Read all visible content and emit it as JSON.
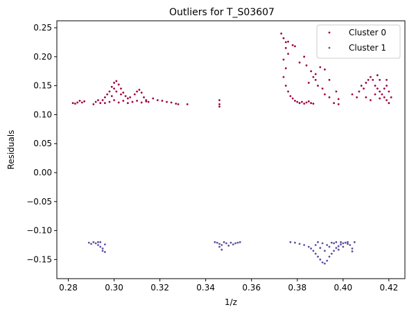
{
  "chart_data": {
    "type": "scatter",
    "title": "Outliers for T_S03607",
    "xlabel": "1/z",
    "ylabel": "Residuals",
    "xlim": [
      0.275,
      0.427
    ],
    "ylim": [
      -0.183,
      0.262
    ],
    "x_ticks": [
      0.28,
      0.3,
      0.32,
      0.34,
      0.36,
      0.38,
      0.4,
      0.42
    ],
    "y_ticks": [
      -0.15,
      -0.1,
      -0.05,
      0.0,
      0.05,
      0.1,
      0.15,
      0.2,
      0.25
    ],
    "x_tick_labels": [
      "0.28",
      "0.30",
      "0.32",
      "0.34",
      "0.36",
      "0.38",
      "0.40",
      "0.42"
    ],
    "y_tick_labels": [
      "−0.15",
      "−0.10",
      "−0.05",
      "0.00",
      "0.05",
      "0.10",
      "0.15",
      "0.20",
      "0.25"
    ],
    "grid": false,
    "legend_position": "top-right",
    "series": [
      {
        "name": "Cluster 0",
        "color": "#9e0142",
        "points": [
          [
            0.282,
            0.12
          ],
          [
            0.283,
            0.119
          ],
          [
            0.284,
            0.121
          ],
          [
            0.285,
            0.124
          ],
          [
            0.286,
            0.121
          ],
          [
            0.287,
            0.123
          ],
          [
            0.291,
            0.118
          ],
          [
            0.292,
            0.122
          ],
          [
            0.293,
            0.125
          ],
          [
            0.294,
            0.12
          ],
          [
            0.295,
            0.125
          ],
          [
            0.296,
            0.13
          ],
          [
            0.297,
            0.135
          ],
          [
            0.298,
            0.14
          ],
          [
            0.299,
            0.148
          ],
          [
            0.3,
            0.155
          ],
          [
            0.301,
            0.158
          ],
          [
            0.302,
            0.152
          ],
          [
            0.303,
            0.145
          ],
          [
            0.304,
            0.138
          ],
          [
            0.305,
            0.132
          ],
          [
            0.306,
            0.128
          ],
          [
            0.296,
            0.12
          ],
          [
            0.298,
            0.122
          ],
          [
            0.3,
            0.125
          ],
          [
            0.302,
            0.121
          ],
          [
            0.304,
            0.124
          ],
          [
            0.306,
            0.12
          ],
          [
            0.299,
            0.132
          ],
          [
            0.301,
            0.14
          ],
          [
            0.303,
            0.135
          ],
          [
            0.3,
            0.145
          ],
          [
            0.307,
            0.13
          ],
          [
            0.309,
            0.135
          ],
          [
            0.31,
            0.14
          ],
          [
            0.311,
            0.143
          ],
          [
            0.312,
            0.138
          ],
          [
            0.313,
            0.13
          ],
          [
            0.314,
            0.125
          ],
          [
            0.308,
            0.122
          ],
          [
            0.31,
            0.124
          ],
          [
            0.312,
            0.121
          ],
          [
            0.314,
            0.123
          ],
          [
            0.315,
            0.122
          ],
          [
            0.317,
            0.128
          ],
          [
            0.319,
            0.125
          ],
          [
            0.321,
            0.124
          ],
          [
            0.323,
            0.122
          ],
          [
            0.325,
            0.121
          ],
          [
            0.327,
            0.119
          ],
          [
            0.328,
            0.118
          ],
          [
            0.332,
            0.118
          ],
          [
            0.346,
            0.125
          ],
          [
            0.346,
            0.118
          ],
          [
            0.346,
            0.114
          ],
          [
            0.373,
            0.24
          ],
          [
            0.374,
            0.232
          ],
          [
            0.375,
            0.225
          ],
          [
            0.375,
            0.215
          ],
          [
            0.376,
            0.226
          ],
          [
            0.376,
            0.205
          ],
          [
            0.374,
            0.195
          ],
          [
            0.375,
            0.18
          ],
          [
            0.374,
            0.165
          ],
          [
            0.375,
            0.15
          ],
          [
            0.376,
            0.14
          ],
          [
            0.377,
            0.132
          ],
          [
            0.378,
            0.128
          ],
          [
            0.379,
            0.124
          ],
          [
            0.38,
            0.122
          ],
          [
            0.381,
            0.12
          ],
          [
            0.382,
            0.122
          ],
          [
            0.383,
            0.119
          ],
          [
            0.384,
            0.121
          ],
          [
            0.385,
            0.123
          ],
          [
            0.386,
            0.12
          ],
          [
            0.387,
            0.119
          ],
          [
            0.378,
            0.22
          ],
          [
            0.379,
            0.218
          ],
          [
            0.383,
            0.2
          ],
          [
            0.381,
            0.19
          ],
          [
            0.384,
            0.185
          ],
          [
            0.386,
            0.175
          ],
          [
            0.387,
            0.165
          ],
          [
            0.388,
            0.16
          ],
          [
            0.389,
            0.15
          ],
          [
            0.391,
            0.145
          ],
          [
            0.392,
            0.135
          ],
          [
            0.394,
            0.13
          ],
          [
            0.39,
            0.182
          ],
          [
            0.388,
            0.17
          ],
          [
            0.385,
            0.155
          ],
          [
            0.392,
            0.178
          ],
          [
            0.394,
            0.16
          ],
          [
            0.397,
            0.14
          ],
          [
            0.398,
            0.127
          ],
          [
            0.396,
            0.12
          ],
          [
            0.398,
            0.118
          ],
          [
            0.404,
            0.135
          ],
          [
            0.406,
            0.13
          ],
          [
            0.407,
            0.14
          ],
          [
            0.408,
            0.15
          ],
          [
            0.409,
            0.145
          ],
          [
            0.41,
            0.155
          ],
          [
            0.411,
            0.16
          ],
          [
            0.412,
            0.165
          ],
          [
            0.413,
            0.16
          ],
          [
            0.414,
            0.15
          ],
          [
            0.415,
            0.145
          ],
          [
            0.416,
            0.14
          ],
          [
            0.417,
            0.135
          ],
          [
            0.418,
            0.13
          ],
          [
            0.419,
            0.125
          ],
          [
            0.42,
            0.14
          ],
          [
            0.421,
            0.13
          ],
          [
            0.41,
            0.13
          ],
          [
            0.412,
            0.125
          ],
          [
            0.414,
            0.135
          ],
          [
            0.416,
            0.128
          ],
          [
            0.418,
            0.145
          ],
          [
            0.419,
            0.15
          ],
          [
            0.42,
            0.12
          ],
          [
            0.416,
            0.16
          ],
          [
            0.415,
            0.168
          ],
          [
            0.419,
            0.16
          ]
        ]
      },
      {
        "name": "Cluster 1",
        "color": "#5e4fa2",
        "points": [
          [
            0.289,
            -0.121
          ],
          [
            0.29,
            -0.123
          ],
          [
            0.291,
            -0.12
          ],
          [
            0.292,
            -0.122
          ],
          [
            0.293,
            -0.125
          ],
          [
            0.294,
            -0.128
          ],
          [
            0.294,
            -0.12
          ],
          [
            0.295,
            -0.131
          ],
          [
            0.295,
            -0.135
          ],
          [
            0.296,
            -0.137
          ],
          [
            0.296,
            -0.124
          ],
          [
            0.293,
            -0.12
          ],
          [
            0.344,
            -0.12
          ],
          [
            0.345,
            -0.121
          ],
          [
            0.346,
            -0.123
          ],
          [
            0.347,
            -0.125
          ],
          [
            0.348,
            -0.12
          ],
          [
            0.349,
            -0.122
          ],
          [
            0.35,
            -0.126
          ],
          [
            0.351,
            -0.121
          ],
          [
            0.352,
            -0.124
          ],
          [
            0.353,
            -0.122
          ],
          [
            0.354,
            -0.121
          ],
          [
            0.355,
            -0.12
          ],
          [
            0.346,
            -0.128
          ],
          [
            0.347,
            -0.133
          ],
          [
            0.377,
            -0.12
          ],
          [
            0.379,
            -0.121
          ],
          [
            0.381,
            -0.123
          ],
          [
            0.383,
            -0.125
          ],
          [
            0.385,
            -0.128
          ],
          [
            0.386,
            -0.131
          ],
          [
            0.387,
            -0.135
          ],
          [
            0.388,
            -0.14
          ],
          [
            0.389,
            -0.145
          ],
          [
            0.39,
            -0.15
          ],
          [
            0.391,
            -0.155
          ],
          [
            0.392,
            -0.157
          ],
          [
            0.393,
            -0.152
          ],
          [
            0.394,
            -0.145
          ],
          [
            0.395,
            -0.14
          ],
          [
            0.396,
            -0.135
          ],
          [
            0.397,
            -0.13
          ],
          [
            0.398,
            -0.127
          ],
          [
            0.399,
            -0.124
          ],
          [
            0.4,
            -0.122
          ],
          [
            0.401,
            -0.121
          ],
          [
            0.402,
            -0.123
          ],
          [
            0.403,
            -0.125
          ],
          [
            0.404,
            -0.131
          ],
          [
            0.405,
            -0.12
          ],
          [
            0.388,
            -0.125
          ],
          [
            0.39,
            -0.13
          ],
          [
            0.392,
            -0.135
          ],
          [
            0.394,
            -0.128
          ],
          [
            0.396,
            -0.122
          ],
          [
            0.398,
            -0.133
          ],
          [
            0.4,
            -0.128
          ],
          [
            0.402,
            -0.12
          ],
          [
            0.389,
            -0.12
          ],
          [
            0.391,
            -0.122
          ],
          [
            0.393,
            -0.125
          ],
          [
            0.395,
            -0.121
          ],
          [
            0.397,
            -0.12
          ],
          [
            0.399,
            -0.12
          ],
          [
            0.404,
            -0.136
          ]
        ]
      }
    ]
  }
}
